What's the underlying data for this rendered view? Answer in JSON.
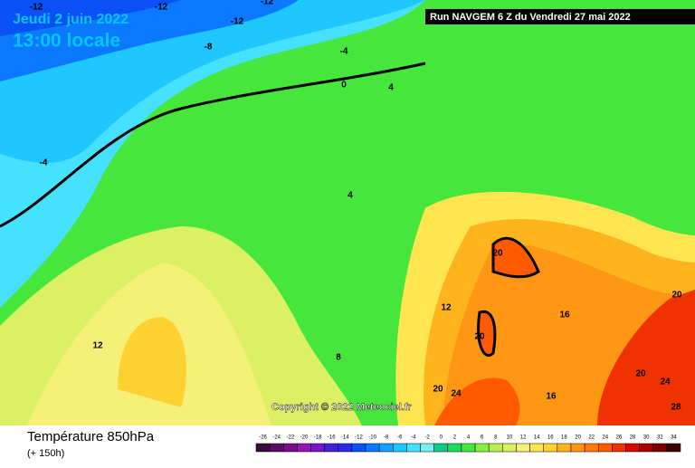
{
  "header": {
    "date": "Jeudi 2 juin 2022",
    "time": "13:00 locale",
    "run": "Run NAVGEM 6 Z du Vendredi 27 mai 2022"
  },
  "copyright": "Copyright © 2022 Meteociel.fr",
  "footer": {
    "title": "Température 850hPa",
    "subtitle": "(+ 150h)"
  },
  "contour_labels": [
    "-12",
    "-12",
    "-12",
    "-12",
    "-8",
    "-4",
    "0",
    "4",
    "-4",
    "4",
    "12",
    "20",
    "16",
    "20",
    "20",
    "12",
    "8",
    "20",
    "24",
    "20",
    "24",
    "16",
    "28"
  ],
  "legend": [
    {
      "label": "-26",
      "color": "#3a0a3a"
    },
    {
      "label": "-24",
      "color": "#5a0a64"
    },
    {
      "label": "-22",
      "color": "#780a8c"
    },
    {
      "label": "-20",
      "color": "#9614b4"
    },
    {
      "label": "-18",
      "color": "#7814c8"
    },
    {
      "label": "-16",
      "color": "#461ed7"
    },
    {
      "label": "-14",
      "color": "#2828e6"
    },
    {
      "label": "-12",
      "color": "#0a50f5"
    },
    {
      "label": "-10",
      "color": "#0a78ff"
    },
    {
      "label": "-8",
      "color": "#14a0ff"
    },
    {
      "label": "-6",
      "color": "#1ec8ff"
    },
    {
      "label": "-4",
      "color": "#46e1ff"
    },
    {
      "label": "-2",
      "color": "#78f0f0"
    },
    {
      "label": "0",
      "color": "#14c88c"
    },
    {
      "label": "2",
      "color": "#1edc5a"
    },
    {
      "label": "4",
      "color": "#46e63c"
    },
    {
      "label": "6",
      "color": "#82f03c"
    },
    {
      "label": "8",
      "color": "#b4f050"
    },
    {
      "label": "10",
      "color": "#dcf064"
    },
    {
      "label": "12",
      "color": "#f5f078"
    },
    {
      "label": "14",
      "color": "#ffe650"
    },
    {
      "label": "16",
      "color": "#ffd232"
    },
    {
      "label": "18",
      "color": "#ffb41e"
    },
    {
      "label": "20",
      "color": "#ff9614"
    },
    {
      "label": "22",
      "color": "#ff780a"
    },
    {
      "label": "24",
      "color": "#ff5a00"
    },
    {
      "label": "26",
      "color": "#f03200"
    },
    {
      "label": "28",
      "color": "#d20a00"
    },
    {
      "label": "30",
      "color": "#aa0000"
    },
    {
      "label": "32",
      "color": "#780000"
    },
    {
      "label": "34",
      "color": "#3c0000"
    }
  ]
}
